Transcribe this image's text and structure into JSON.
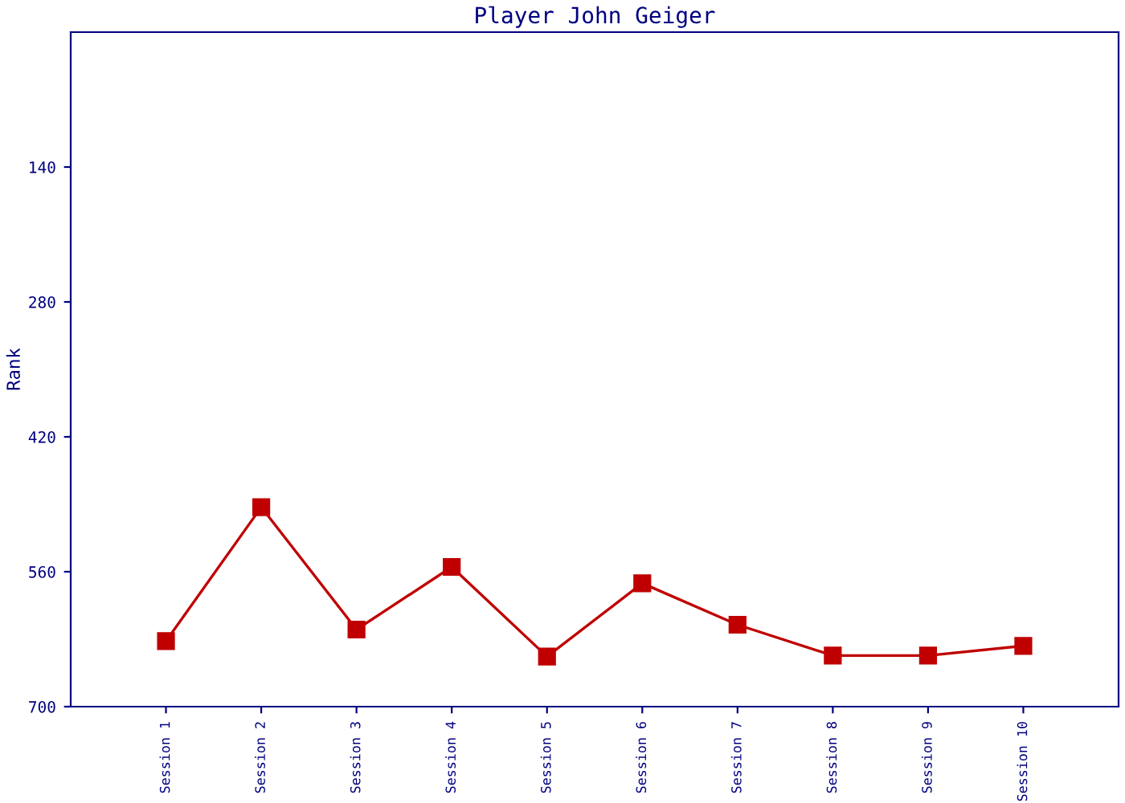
{
  "chart_data": {
    "type": "line",
    "title": "Player John Geiger",
    "ylabel": "Rank",
    "categories": [
      "Session 1",
      "Session 2",
      "Session 3",
      "Session 4",
      "Session 5",
      "Session 6",
      "Session 7",
      "Session 8",
      "Session 9",
      "Session 10"
    ],
    "series": [
      {
        "color": "#c00000",
        "values": [
          632,
          493,
          620,
          555,
          648,
          572,
          615,
          647,
          647,
          637
        ]
      }
    ],
    "ylim": [
      700,
      0
    ],
    "yticks": [
      140,
      280,
      420,
      560,
      700
    ],
    "grid": false,
    "legend": false,
    "marker": "square",
    "line_style": "solid"
  }
}
